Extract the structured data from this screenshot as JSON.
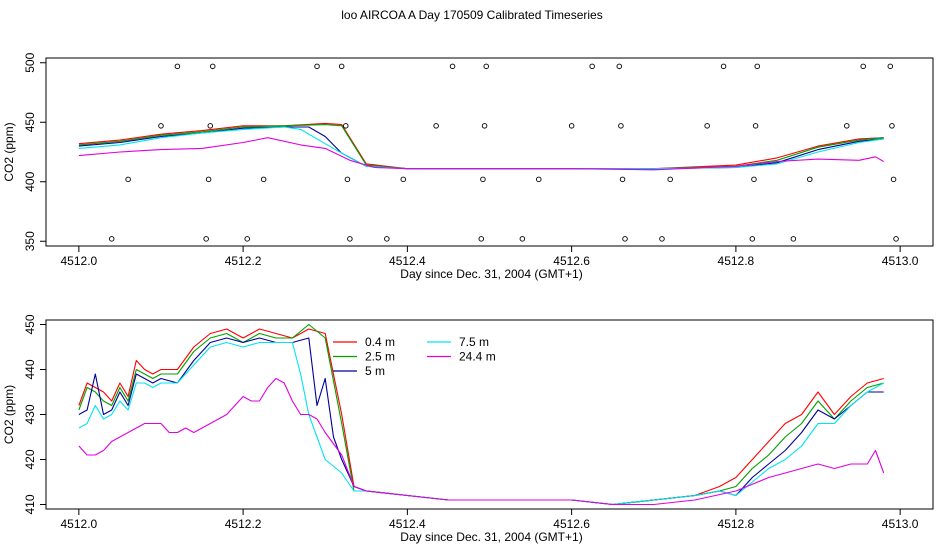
{
  "title": "loo AIRCOA A  Day 170509  Calibrated Timeseries",
  "chart_data": [
    {
      "type": "scatter",
      "xlabel": "Day since Dec. 31, 2004 (GMT+1)",
      "ylabel": "CO2 (ppm)",
      "xlim": [
        4511.96,
        4513.04
      ],
      "ylim": [
        346,
        504
      ],
      "xticks": [
        "4512.0",
        "4512.2",
        "4512.4",
        "4512.6",
        "4512.8",
        "4513.0"
      ],
      "yticks": [
        "350",
        "400",
        "450",
        "500"
      ],
      "markers": {
        "style": "open-circle",
        "points": [
          [
            4512.04,
            352
          ],
          [
            4512.06,
            402
          ],
          [
            4512.1,
            447
          ],
          [
            4512.12,
            497
          ],
          [
            4512.155,
            352
          ],
          [
            4512.158,
            402
          ],
          [
            4512.16,
            447
          ],
          [
            4512.163,
            497
          ],
          [
            4512.205,
            352
          ],
          [
            4512.225,
            402
          ],
          [
            4512.29,
            497
          ],
          [
            4512.32,
            497
          ],
          [
            4512.325,
            447
          ],
          [
            4512.327,
            402
          ],
          [
            4512.33,
            352
          ],
          [
            4512.375,
            352
          ],
          [
            4512.395,
            402
          ],
          [
            4512.435,
            447
          ],
          [
            4512.455,
            497
          ],
          [
            4512.49,
            352
          ],
          [
            4512.492,
            402
          ],
          [
            4512.494,
            447
          ],
          [
            4512.496,
            497
          ],
          [
            4512.54,
            352
          ],
          [
            4512.56,
            402
          ],
          [
            4512.6,
            447
          ],
          [
            4512.625,
            497
          ],
          [
            4512.658,
            497
          ],
          [
            4512.66,
            447
          ],
          [
            4512.662,
            402
          ],
          [
            4512.665,
            352
          ],
          [
            4512.71,
            352
          ],
          [
            4512.72,
            402
          ],
          [
            4512.765,
            447
          ],
          [
            4512.785,
            497
          ],
          [
            4512.82,
            352
          ],
          [
            4512.822,
            402
          ],
          [
            4512.824,
            447
          ],
          [
            4512.826,
            497
          ],
          [
            4512.87,
            352
          ],
          [
            4512.89,
            402
          ],
          [
            4512.935,
            447
          ],
          [
            4512.955,
            497
          ],
          [
            4512.988,
            497
          ],
          [
            4512.99,
            447
          ],
          [
            4512.992,
            402
          ],
          [
            4512.995,
            352
          ]
        ]
      },
      "series": [
        {
          "color": "#ff0000",
          "x": [
            4512.0,
            4512.05,
            4512.1,
            4512.15,
            4512.2,
            4512.25,
            4512.3,
            4512.32,
            4512.35,
            4512.4,
            4512.5,
            4512.6,
            4512.7,
            4512.8,
            4512.85,
            4512.9,
            4512.95,
            4512.98
          ],
          "y": [
            432,
            435,
            440,
            443,
            447,
            447,
            449,
            448,
            415,
            411,
            411,
            411,
            411,
            414,
            420,
            430,
            436,
            437
          ]
        },
        {
          "color": "#00a000",
          "x": [
            4512.0,
            4512.05,
            4512.1,
            4512.15,
            4512.2,
            4512.25,
            4512.3,
            4512.32,
            4512.35,
            4512.4,
            4512.5,
            4512.6,
            4512.7,
            4512.8,
            4512.85,
            4512.9,
            4512.95,
            4512.98
          ],
          "y": [
            431,
            434,
            439,
            442,
            446,
            447,
            448,
            447,
            414,
            411,
            411,
            411,
            411,
            413,
            418,
            429,
            435,
            437
          ]
        },
        {
          "color": "#000099",
          "x": [
            4512.0,
            4512.05,
            4512.1,
            4512.15,
            4512.2,
            4512.25,
            4512.28,
            4512.3,
            4512.32,
            4512.35,
            4512.4,
            4512.5,
            4512.6,
            4512.7,
            4512.8,
            4512.85,
            4512.9,
            4512.95,
            4512.98
          ],
          "y": [
            430,
            433,
            438,
            441,
            445,
            446,
            446,
            438,
            424,
            413,
            411,
            411,
            411,
            411,
            412,
            416,
            427,
            434,
            436
          ]
        },
        {
          "color": "#00e5ee",
          "x": [
            4512.0,
            4512.05,
            4512.1,
            4512.15,
            4512.2,
            4512.25,
            4512.27,
            4512.3,
            4512.33,
            4512.35,
            4512.4,
            4512.5,
            4512.6,
            4512.7,
            4512.8,
            4512.85,
            4512.9,
            4512.95,
            4512.98
          ],
          "y": [
            428,
            431,
            437,
            441,
            444,
            446,
            444,
            432,
            420,
            413,
            411,
            411,
            411,
            411,
            412,
            415,
            425,
            433,
            436
          ]
        },
        {
          "color": "#e000e0",
          "x": [
            4512.0,
            4512.05,
            4512.1,
            4512.15,
            4512.2,
            4512.23,
            4512.27,
            4512.3,
            4512.33,
            4512.36,
            4512.4,
            4512.5,
            4512.6,
            4512.7,
            4512.8,
            4512.85,
            4512.9,
            4512.95,
            4512.97,
            4512.98
          ],
          "y": [
            422,
            425,
            427,
            428,
            433,
            437,
            431,
            428,
            418,
            412,
            411,
            411,
            411,
            410,
            413,
            417,
            419,
            418,
            421,
            417
          ]
        }
      ]
    },
    {
      "type": "line",
      "xlabel": "Day since Dec. 31, 2004 (GMT+1)",
      "ylabel": "CO2 (ppm)",
      "xlim": [
        4511.96,
        4513.04
      ],
      "ylim": [
        409,
        451
      ],
      "xticks": [
        "4512.0",
        "4512.2",
        "4512.4",
        "4512.6",
        "4512.8",
        "4513.0"
      ],
      "yticks": [
        "410",
        "420",
        "430",
        "440",
        "450"
      ],
      "legend_position": "top-center",
      "series": [
        {
          "name": "0.4 m",
          "color": "#ff0000",
          "x": [
            4512.0,
            4512.01,
            4512.02,
            4512.03,
            4512.04,
            4512.05,
            4512.06,
            4512.07,
            4512.08,
            4512.09,
            4512.1,
            4512.12,
            4512.14,
            4512.16,
            4512.18,
            4512.2,
            4512.22,
            4512.24,
            4512.26,
            4512.28,
            4512.3,
            4512.32,
            4512.335,
            4512.35,
            4512.4,
            4512.45,
            4512.5,
            4512.55,
            4512.6,
            4512.65,
            4512.7,
            4512.75,
            4512.78,
            4512.8,
            4512.82,
            4512.84,
            4512.86,
            4512.88,
            4512.9,
            4512.92,
            4512.94,
            4512.96,
            4512.98
          ],
          "y": [
            432,
            437,
            436,
            435,
            433,
            437,
            434,
            442,
            440,
            439,
            440,
            440,
            445,
            448,
            449,
            447,
            449,
            448,
            447,
            449,
            448,
            430,
            414,
            413,
            412,
            411,
            411,
            411,
            411,
            410,
            411,
            412,
            414,
            416,
            420,
            424,
            428,
            430,
            435,
            430,
            434,
            437,
            438
          ]
        },
        {
          "name": "2.5 m",
          "color": "#00a000",
          "x": [
            4512.0,
            4512.01,
            4512.02,
            4512.03,
            4512.04,
            4512.05,
            4512.06,
            4512.07,
            4512.08,
            4512.09,
            4512.1,
            4512.12,
            4512.14,
            4512.16,
            4512.18,
            4512.2,
            4512.22,
            4512.24,
            4512.26,
            4512.28,
            4512.3,
            4512.32,
            4512.335,
            4512.35,
            4512.4,
            4512.45,
            4512.5,
            4512.55,
            4512.6,
            4512.65,
            4512.7,
            4512.75,
            4512.78,
            4512.8,
            4512.82,
            4512.84,
            4512.86,
            4512.88,
            4512.9,
            4512.92,
            4512.94,
            4512.96,
            4512.98
          ],
          "y": [
            431,
            436,
            435,
            433,
            432,
            436,
            433,
            440,
            439,
            438,
            439,
            439,
            444,
            447,
            448,
            446,
            448,
            447,
            447,
            450,
            447,
            428,
            413,
            413,
            412,
            411,
            411,
            411,
            411,
            410,
            411,
            412,
            413,
            414,
            418,
            421,
            425,
            428,
            433,
            429,
            433,
            436,
            437
          ]
        },
        {
          "name": "5 m",
          "color": "#000099",
          "x": [
            4512.0,
            4512.01,
            4512.02,
            4512.03,
            4512.04,
            4512.05,
            4512.06,
            4512.07,
            4512.08,
            4512.09,
            4512.1,
            4512.12,
            4512.14,
            4512.16,
            4512.18,
            4512.2,
            4512.22,
            4512.24,
            4512.26,
            4512.28,
            4512.29,
            4512.3,
            4512.31,
            4512.32,
            4512.335,
            4512.35,
            4512.4,
            4512.45,
            4512.5,
            4512.55,
            4512.6,
            4512.65,
            4512.7,
            4512.75,
            4512.78,
            4512.8,
            4512.82,
            4512.84,
            4512.86,
            4512.88,
            4512.9,
            4512.92,
            4512.94,
            4512.96,
            4512.98
          ],
          "y": [
            430,
            431,
            439,
            430,
            431,
            435,
            432,
            439,
            438,
            437,
            438,
            437,
            442,
            446,
            447,
            446,
            447,
            446,
            446,
            447,
            432,
            438,
            425,
            420,
            414,
            413,
            412,
            411,
            411,
            411,
            411,
            410,
            411,
            412,
            413,
            412,
            416,
            419,
            422,
            426,
            431,
            429,
            432,
            435,
            435
          ]
        },
        {
          "name": "7.5 m",
          "color": "#00e5ee",
          "x": [
            4512.0,
            4512.01,
            4512.02,
            4512.03,
            4512.04,
            4512.05,
            4512.06,
            4512.07,
            4512.08,
            4512.09,
            4512.1,
            4512.12,
            4512.14,
            4512.16,
            4512.18,
            4512.2,
            4512.22,
            4512.24,
            4512.26,
            4512.27,
            4512.28,
            4512.29,
            4512.3,
            4512.32,
            4512.335,
            4512.35,
            4512.4,
            4512.45,
            4512.5,
            4512.55,
            4512.6,
            4512.65,
            4512.7,
            4512.75,
            4512.78,
            4512.8,
            4512.82,
            4512.84,
            4512.86,
            4512.88,
            4512.9,
            4512.92,
            4512.94,
            4512.96,
            4512.98
          ],
          "y": [
            427,
            428,
            432,
            429,
            430,
            433,
            431,
            437,
            437,
            436,
            437,
            437,
            441,
            445,
            446,
            445,
            446,
            446,
            446,
            439,
            430,
            425,
            420,
            417,
            413,
            413,
            412,
            411,
            411,
            411,
            411,
            410,
            411,
            412,
            413,
            412,
            415,
            418,
            420,
            423,
            428,
            428,
            432,
            435,
            437
          ]
        },
        {
          "name": "24.4 m",
          "color": "#e000e0",
          "x": [
            4512.0,
            4512.01,
            4512.02,
            4512.03,
            4512.04,
            4512.06,
            4512.08,
            4512.09,
            4512.1,
            4512.11,
            4512.12,
            4512.13,
            4512.14,
            4512.16,
            4512.18,
            4512.19,
            4512.2,
            4512.21,
            4512.22,
            4512.23,
            4512.24,
            4512.25,
            4512.26,
            4512.27,
            4512.28,
            4512.29,
            4512.3,
            4512.32,
            4512.335,
            4512.35,
            4512.4,
            4512.45,
            4512.5,
            4512.55,
            4512.6,
            4512.65,
            4512.7,
            4512.75,
            4512.8,
            4512.84,
            4512.88,
            4512.9,
            4512.92,
            4512.94,
            4512.96,
            4512.97,
            4512.98
          ],
          "y": [
            423,
            421,
            421,
            422,
            424,
            426,
            428,
            428,
            428,
            426,
            426,
            427,
            426,
            428,
            430,
            432,
            434,
            433,
            433,
            436,
            438,
            437,
            433,
            430,
            430,
            429,
            426,
            421,
            414,
            413,
            412,
            411,
            411,
            411,
            411,
            410,
            410,
            411,
            413,
            416,
            418,
            419,
            418,
            419,
            419,
            422,
            417
          ]
        }
      ]
    }
  ]
}
